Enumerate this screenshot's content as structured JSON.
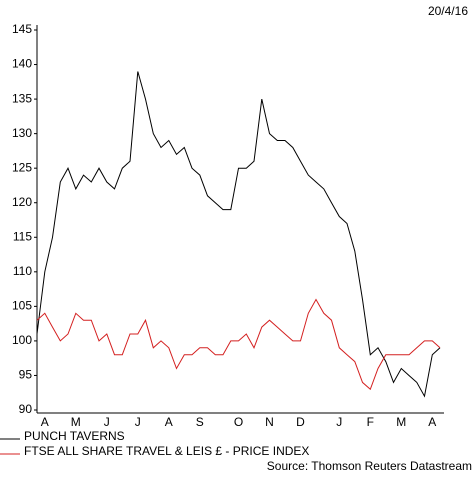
{
  "chart_data": {
    "type": "line",
    "date": "20/4/16",
    "source": "Source: Thomson Reuters Datastream",
    "categories": [
      null,
      "A",
      null,
      null,
      null,
      "M",
      null,
      null,
      null,
      "J",
      null,
      null,
      null,
      "J",
      null,
      null,
      null,
      "A",
      null,
      null,
      null,
      "S",
      null,
      null,
      null,
      null,
      "O",
      null,
      null,
      null,
      "N",
      null,
      null,
      null,
      "D",
      null,
      null,
      null,
      null,
      "J",
      null,
      null,
      null,
      "F",
      null,
      null,
      null,
      "M",
      null,
      null,
      null,
      "A",
      null
    ],
    "series": [
      {
        "name": "PUNCH TAVERNS",
        "color": "#000000",
        "values": [
          101,
          110,
          115,
          123,
          125,
          122,
          124,
          123,
          125,
          123,
          122,
          125,
          126,
          139,
          135,
          130,
          128,
          129,
          127,
          128,
          125,
          124,
          121,
          120,
          119,
          119,
          125,
          125,
          126,
          135,
          130,
          129,
          129,
          128,
          126,
          124,
          123,
          122,
          120,
          118,
          117,
          113,
          106,
          98,
          99,
          97,
          94,
          96,
          95,
          94,
          92,
          98,
          99
        ]
      },
      {
        "name": "FTSE ALL SHARE TRAVEL & LEIS £ - PRICE INDEX",
        "color": "#d42020",
        "values": [
          103,
          104,
          102,
          100,
          101,
          104,
          103,
          103,
          100,
          101,
          98,
          98,
          101,
          101,
          103,
          99,
          100,
          99,
          96,
          98,
          98,
          99,
          99,
          98,
          98,
          100,
          100,
          101,
          99,
          102,
          103,
          102,
          101,
          100,
          100,
          104,
          106,
          104,
          103,
          99,
          98,
          97,
          94,
          93,
          96,
          98,
          98,
          98,
          98,
          99,
          100,
          100,
          99
        ]
      }
    ],
    "ylim": [
      90,
      145
    ],
    "yticks": [
      90,
      95,
      100,
      105,
      110,
      115,
      120,
      125,
      130,
      135,
      140,
      145
    ]
  }
}
